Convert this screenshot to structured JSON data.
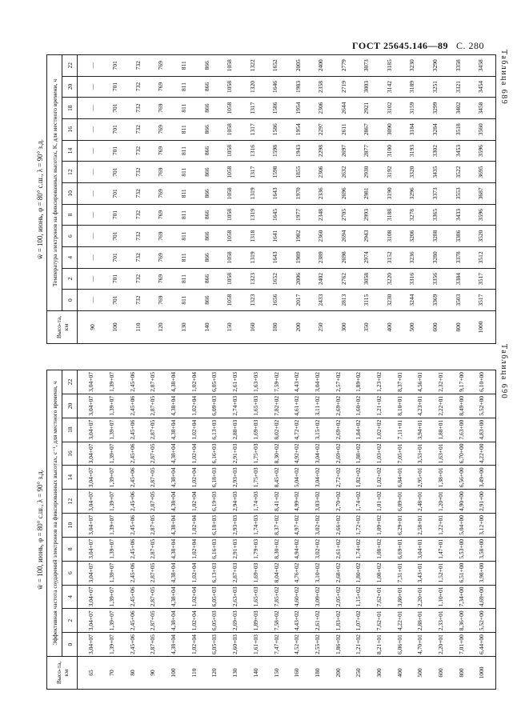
{
  "header": {
    "standard": "ГОСТ 25645.146—89",
    "page": "С. 280"
  },
  "tables": [
    {
      "label": "Таблица 689",
      "title": "w̄ = 100, июнь, φ = 80° с.ш., λ = 90° з.д.",
      "stub_header": "Высо-та, км",
      "caption": "Температура электронов на фиксированных высотах, K, для местного времени, ч",
      "heights": [
        "90",
        "100",
        "110",
        "120",
        "130",
        "140",
        "150",
        "160",
        "180",
        "200",
        "250",
        "300",
        "350",
        "400",
        "500",
        "600",
        "800",
        "1000"
      ],
      "columns": [
        {
          "time": "0",
          "values": [
            "—",
            "701",
            "732",
            "769",
            "811",
            "866",
            "1058",
            "1323",
            "1656",
            "2017",
            "2433",
            "2813",
            "3115",
            "3230",
            "3244",
            "3369",
            "3503",
            "3517"
          ]
        },
        {
          "time": "2",
          "values": [
            "—",
            "701",
            "732",
            "769",
            "811",
            "866",
            "1058",
            "1323",
            "1652",
            "2006",
            "2402",
            "2762",
            "3058",
            "3220",
            "3316",
            "3356",
            "3384",
            "3517"
          ]
        },
        {
          "time": "4",
          "values": [
            "—",
            "701",
            "732",
            "769",
            "811",
            "866",
            "1058",
            "1319",
            "1643",
            "1989",
            "2389",
            "2698",
            "2974",
            "3152",
            "3236",
            "3280",
            "3378",
            "3512"
          ]
        },
        {
          "time": "6",
          "values": [
            "—",
            "701",
            "732",
            "769",
            "811",
            "866",
            "1058",
            "1318",
            "1641",
            "1982",
            "2360",
            "2694",
            "2943",
            "3108",
            "3206",
            "3288",
            "3386",
            "3520"
          ]
        },
        {
          "time": "8",
          "values": [
            "—",
            "701",
            "732",
            "769",
            "811",
            "866",
            "1058",
            "1319",
            "1645",
            "1977",
            "2348",
            "2705",
            "2993",
            "3188",
            "3278",
            "3365",
            "3433",
            "3596"
          ]
        },
        {
          "time": "10",
          "values": [
            "—",
            "701",
            "732",
            "769",
            "811",
            "866",
            "1058",
            "1319",
            "1643",
            "1970",
            "2336",
            "2696",
            "2981",
            "3190",
            "3296",
            "3373",
            "3553",
            "3687"
          ]
        },
        {
          "time": "12",
          "values": [
            "—",
            "701",
            "732",
            "769",
            "811",
            "866",
            "1058",
            "1317",
            "1598",
            "1855",
            "2306",
            "2632",
            "2930",
            "3192",
            "3320",
            "3435",
            "3522",
            "3695"
          ]
        },
        {
          "time": "14",
          "values": [
            "—",
            "701",
            "732",
            "769",
            "811",
            "866",
            "1058",
            "1316",
            "1598",
            "1943",
            "2298",
            "2697",
            "2877",
            "3100",
            "3193",
            "3302",
            "3453",
            "3596"
          ]
        },
        {
          "time": "16",
          "values": [
            "—",
            "701",
            "732",
            "769",
            "811",
            "866",
            "1058",
            "1317",
            "1586",
            "1954",
            "2297",
            "2611",
            "2867",
            "3090",
            "3184",
            "3284",
            "3518",
            "3560"
          ]
        },
        {
          "time": "18",
          "values": [
            "—",
            "701",
            "732",
            "769",
            "811",
            "866",
            "1058",
            "1317",
            "1586",
            "1954",
            "2306",
            "2644",
            "2921",
            "3102",
            "3159",
            "3299",
            "3402",
            "3458"
          ]
        },
        {
          "time": "20",
          "values": [
            "—",
            "701",
            "732",
            "769",
            "811",
            "866",
            "1058",
            "1320",
            "1646",
            "1983",
            "2358",
            "2719",
            "3003",
            "3142",
            "3189",
            "3251",
            "3321",
            "3454"
          ]
        },
        {
          "time": "22",
          "values": [
            "—",
            "701",
            "732",
            "769",
            "811",
            "866",
            "1058",
            "1322",
            "1652",
            "2005",
            "2400",
            "2779",
            "3073",
            "3185",
            "3230",
            "3290",
            "3358",
            "3458"
          ]
        }
      ]
    },
    {
      "label": "Таблица 690",
      "title": "w̄ = 100, июнь, φ = 80° с.ш., λ = 90° з.д.",
      "stub_header": "Высо-та, км",
      "caption": "Эффективная частота соударений электронов на фиксированных высотах, с⁻¹, для местного времени, ч",
      "heights": [
        "65",
        "70",
        "80",
        "90",
        "100",
        "110",
        "120",
        "130",
        "140",
        "150",
        "160",
        "180",
        "200",
        "250",
        "300",
        "400",
        "500",
        "600",
        "800",
        "1000"
      ],
      "columns": [
        {
          "time": "0",
          "values": [
            "3,04+07",
            "1,39+07",
            "2,45+06",
            "2,87+05",
            "4,38+04",
            "1,02+04",
            "6,05+03",
            "2,60+03",
            "1,61+03",
            "7,47+02",
            "4,52+02",
            "2,55+02",
            "1,86+02",
            "1,21+02",
            "8,21+01",
            "6,06+01",
            "4,70+01",
            "2,20+01",
            "7,01+00",
            "6,44+00"
          ]
        },
        {
          "time": "2",
          "values": [
            "3,04+07",
            "1,39+07",
            "2,45+06",
            "2,87+05",
            "4,38+04",
            "1,02+04",
            "6,05+03",
            "2,69+03",
            "1,89+03",
            "7,58+02",
            "4,43+02",
            "2,61+02",
            "1,83+02",
            "1,07+02",
            "7,62+01",
            "4,22+01",
            "2,88+01",
            "2,33+01",
            "8,36+00",
            "5,52+00"
          ]
        },
        {
          "time": "4",
          "values": [
            "3,04+07",
            "1,39+07",
            "2,45+06",
            "2,87+05",
            "4,38+04",
            "1,02+04",
            "6,05+03",
            "2,63+03",
            "1,65+03",
            "7,85+02",
            "4,60+02",
            "3,09+02",
            "2,05+02",
            "1,15+02",
            "7,62+01",
            "3,80+01",
            "2,20+01",
            "1,10+01",
            "7,34+00",
            "4,69+00"
          ]
        },
        {
          "time": "6",
          "values": [
            "3,04+07",
            "1,39+07",
            "2,45+06",
            "2,87+05",
            "4,38+04",
            "1,02+04",
            "6,13+03",
            "2,87+03",
            "1,69+03",
            "8,04+02",
            "4,76+02",
            "3,10+02",
            "2,68+02",
            "1,80+02",
            "1,08+02",
            "7,31+01",
            "3,43+01",
            "1,52+01",
            "6,51+00",
            "3,98+00"
          ]
        },
        {
          "time": "8",
          "values": [
            "3,04+07",
            "1,39+07",
            "2,45+06",
            "2,87+05",
            "4,38+04",
            "1,02+04",
            "6,16+03",
            "2,91+03",
            "1,79+03",
            "8,30+02",
            "4,94+02",
            "3,02+02",
            "2,61+02",
            "1,74+02",
            "1,08+02",
            "6,69+01",
            "3,04+01",
            "1,47+01",
            "5,53+00",
            "3,58+00"
          ]
        },
        {
          "time": "10",
          "values": [
            "3,04+07",
            "1,39+07",
            "2,45+06",
            "2,87+05",
            "4,38+04",
            "1,02+04",
            "6,18+03",
            "2,93+03",
            "1,74+03",
            "8,37+02",
            "4,97+02",
            "3,02+02",
            "2,66+02",
            "1,72+02",
            "1,09+02",
            "6,29+01",
            "2,58+01",
            "1,22+01",
            "5,04+00",
            "3,12+00"
          ]
        },
        {
          "time": "12",
          "values": [
            "3,04+07",
            "1,39+07",
            "2,45+06",
            "2,87+05",
            "4,38+04",
            "1,02+04",
            "6,19+03",
            "2,94+03",
            "1,74+03",
            "8,41+02",
            "4,99+02",
            "3,03+02",
            "2,70+02",
            "1,74+02",
            "1,01+02",
            "6,09+01",
            "2,48+01",
            "1,20+01",
            "4,90+00",
            "2,91+00"
          ]
        },
        {
          "time": "14",
          "values": [
            "3,04+07",
            "1,39+07",
            "2,45+06",
            "2,87+05",
            "4,38+04",
            "1,02+04",
            "6,18+03",
            "2,93+03",
            "1,75+03",
            "8,45+02",
            "5,04+02",
            "3,04+02",
            "2,72+02",
            "1,82+02",
            "1,02+02",
            "6,84+01",
            "2,95+01",
            "1,38+01",
            "6,56+00",
            "3,49+00"
          ]
        },
        {
          "time": "16",
          "values": [
            "3,04+07",
            "1,39+07",
            "2,45+06",
            "2,87+05",
            "4,38+04",
            "1,02+04",
            "6,16+03",
            "2,91+03",
            "1,75+03",
            "8,30+02",
            "4,92+02",
            "3,04+02",
            "2,69+02",
            "1,88+02",
            "1,03+02",
            "7,05+01",
            "3,53+01",
            "1,63+01",
            "6,70+00",
            "4,22+00"
          ]
        },
        {
          "time": "18",
          "values": [
            "3,04+07",
            "1,39+07",
            "2,45+06",
            "2,87+05",
            "4,38+04",
            "1,02+04",
            "6,13+03",
            "2,88+03",
            "1,69+03",
            "8,02+02",
            "4,72+02",
            "3,15+02",
            "2,69+02",
            "1,84+02",
            "1,02+02",
            "7,11+01",
            "3,94+01",
            "1,88+01",
            "7,63+00",
            "4,83+00"
          ]
        },
        {
          "time": "20",
          "values": [
            "3,04+07",
            "1,39+07",
            "2,45+06",
            "2,87+05",
            "4,38+04",
            "1,02+04",
            "6,09+03",
            "2,74+03",
            "1,65+03",
            "7,82+02",
            "4,61+02",
            "3,11+02",
            "2,69+02",
            "1,60+02",
            "1,21+02",
            "8,10+01",
            "4,23+01",
            "2,22+01",
            "8,49+00",
            "5,52+00"
          ]
        },
        {
          "time": "22",
          "values": [
            "3,04+07",
            "1,39+07",
            "2,45+06",
            "2,87+05",
            "4,38+04",
            "1,02+04",
            "6,05+03",
            "2,61+03",
            "1,63+03",
            "7,59+02",
            "4,43+02",
            "3,04+02",
            "2,57+02",
            "1,89+02",
            "1,23+02",
            "8,37+01",
            "4,56+01",
            "2,32+01",
            "9,17+00",
            "6,10+00"
          ]
        }
      ]
    }
  ]
}
